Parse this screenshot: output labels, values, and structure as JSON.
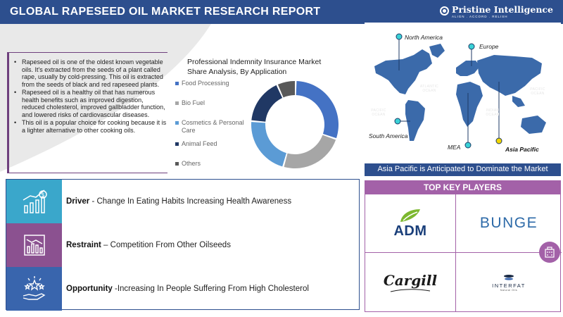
{
  "header": {
    "title": "GLOBAL RAPESEED OIL MARKET RESEARCH REPORT",
    "brand_name": "Pristine Intelligence",
    "brand_tagline": "ALIGN . ACCORD . RELISH"
  },
  "description": {
    "bullets": [
      "Rapeseed oil is one of the oldest known vegetable oils. It's extracted from the seeds of a plant called rape, usually by cold-pressing. This oil is extracted from the seeds of black and red rapeseed plants.",
      "Rapeseed oil is a healthy oil that has numerous health benefits such as improved digestion, reduced cholesterol, improved gallbladder function, and lowered risks of cardiovascular diseases.",
      "This oil is a popular choice for cooking because it is a lighter alternative to other cooking oils."
    ]
  },
  "chart": {
    "title": "Professional Indemnity Insurance Market Share Analysis, By Application"
  },
  "chart_data": {
    "type": "pie",
    "title": "Professional Indemnity Insurance Market Share Analysis, By Application",
    "categories": [
      "Food Processing",
      "Bio Fuel",
      "Cosmetics & Personal Care",
      "Animal Feed",
      "Others"
    ],
    "values": [
      30,
      24,
      22,
      17,
      7
    ],
    "colors": [
      "#4472c4",
      "#a6a6a6",
      "#5b9bd5",
      "#203864",
      "#595959"
    ],
    "legend": "left"
  },
  "map": {
    "labels": {
      "north_america": "North America",
      "europe": "Europe",
      "south_america": "South America",
      "mea": "MEA",
      "asia_pacific": "Asia Pacific"
    },
    "oceans": {
      "atlantic": "ATLANTIC\nOCEAN",
      "pacific_right": "PACIFIC\nOCEAN",
      "pacific_left": "PACIFIC\nOCEAN",
      "indian": "INDIAN\nOCEAN"
    },
    "caption": "Asia Pacific is Anticipated to Dominate the Market",
    "highlight_color": "#f2d600",
    "marker_color": "#3ad1d6"
  },
  "factors": [
    {
      "label": "Driver",
      "separator": " - ",
      "text": "Change In Eating Habits Increasing Health Awareness",
      "bg": "#3aa7cb"
    },
    {
      "label": "Restraint",
      "separator": " – ",
      "text": "Competition From Other Oilseeds",
      "bg": "#8b5190"
    },
    {
      "label": "Opportunity",
      "separator": " -",
      "text": "Increasing In People Suffering From High Cholesterol",
      "bg": "#3965ad"
    }
  ],
  "players": {
    "title": "TOP KEY PLAYERS",
    "names": [
      "ADM",
      "BUNGE",
      "Cargill",
      "INTERFAT"
    ],
    "interfat_sub": "Natural Oils"
  }
}
